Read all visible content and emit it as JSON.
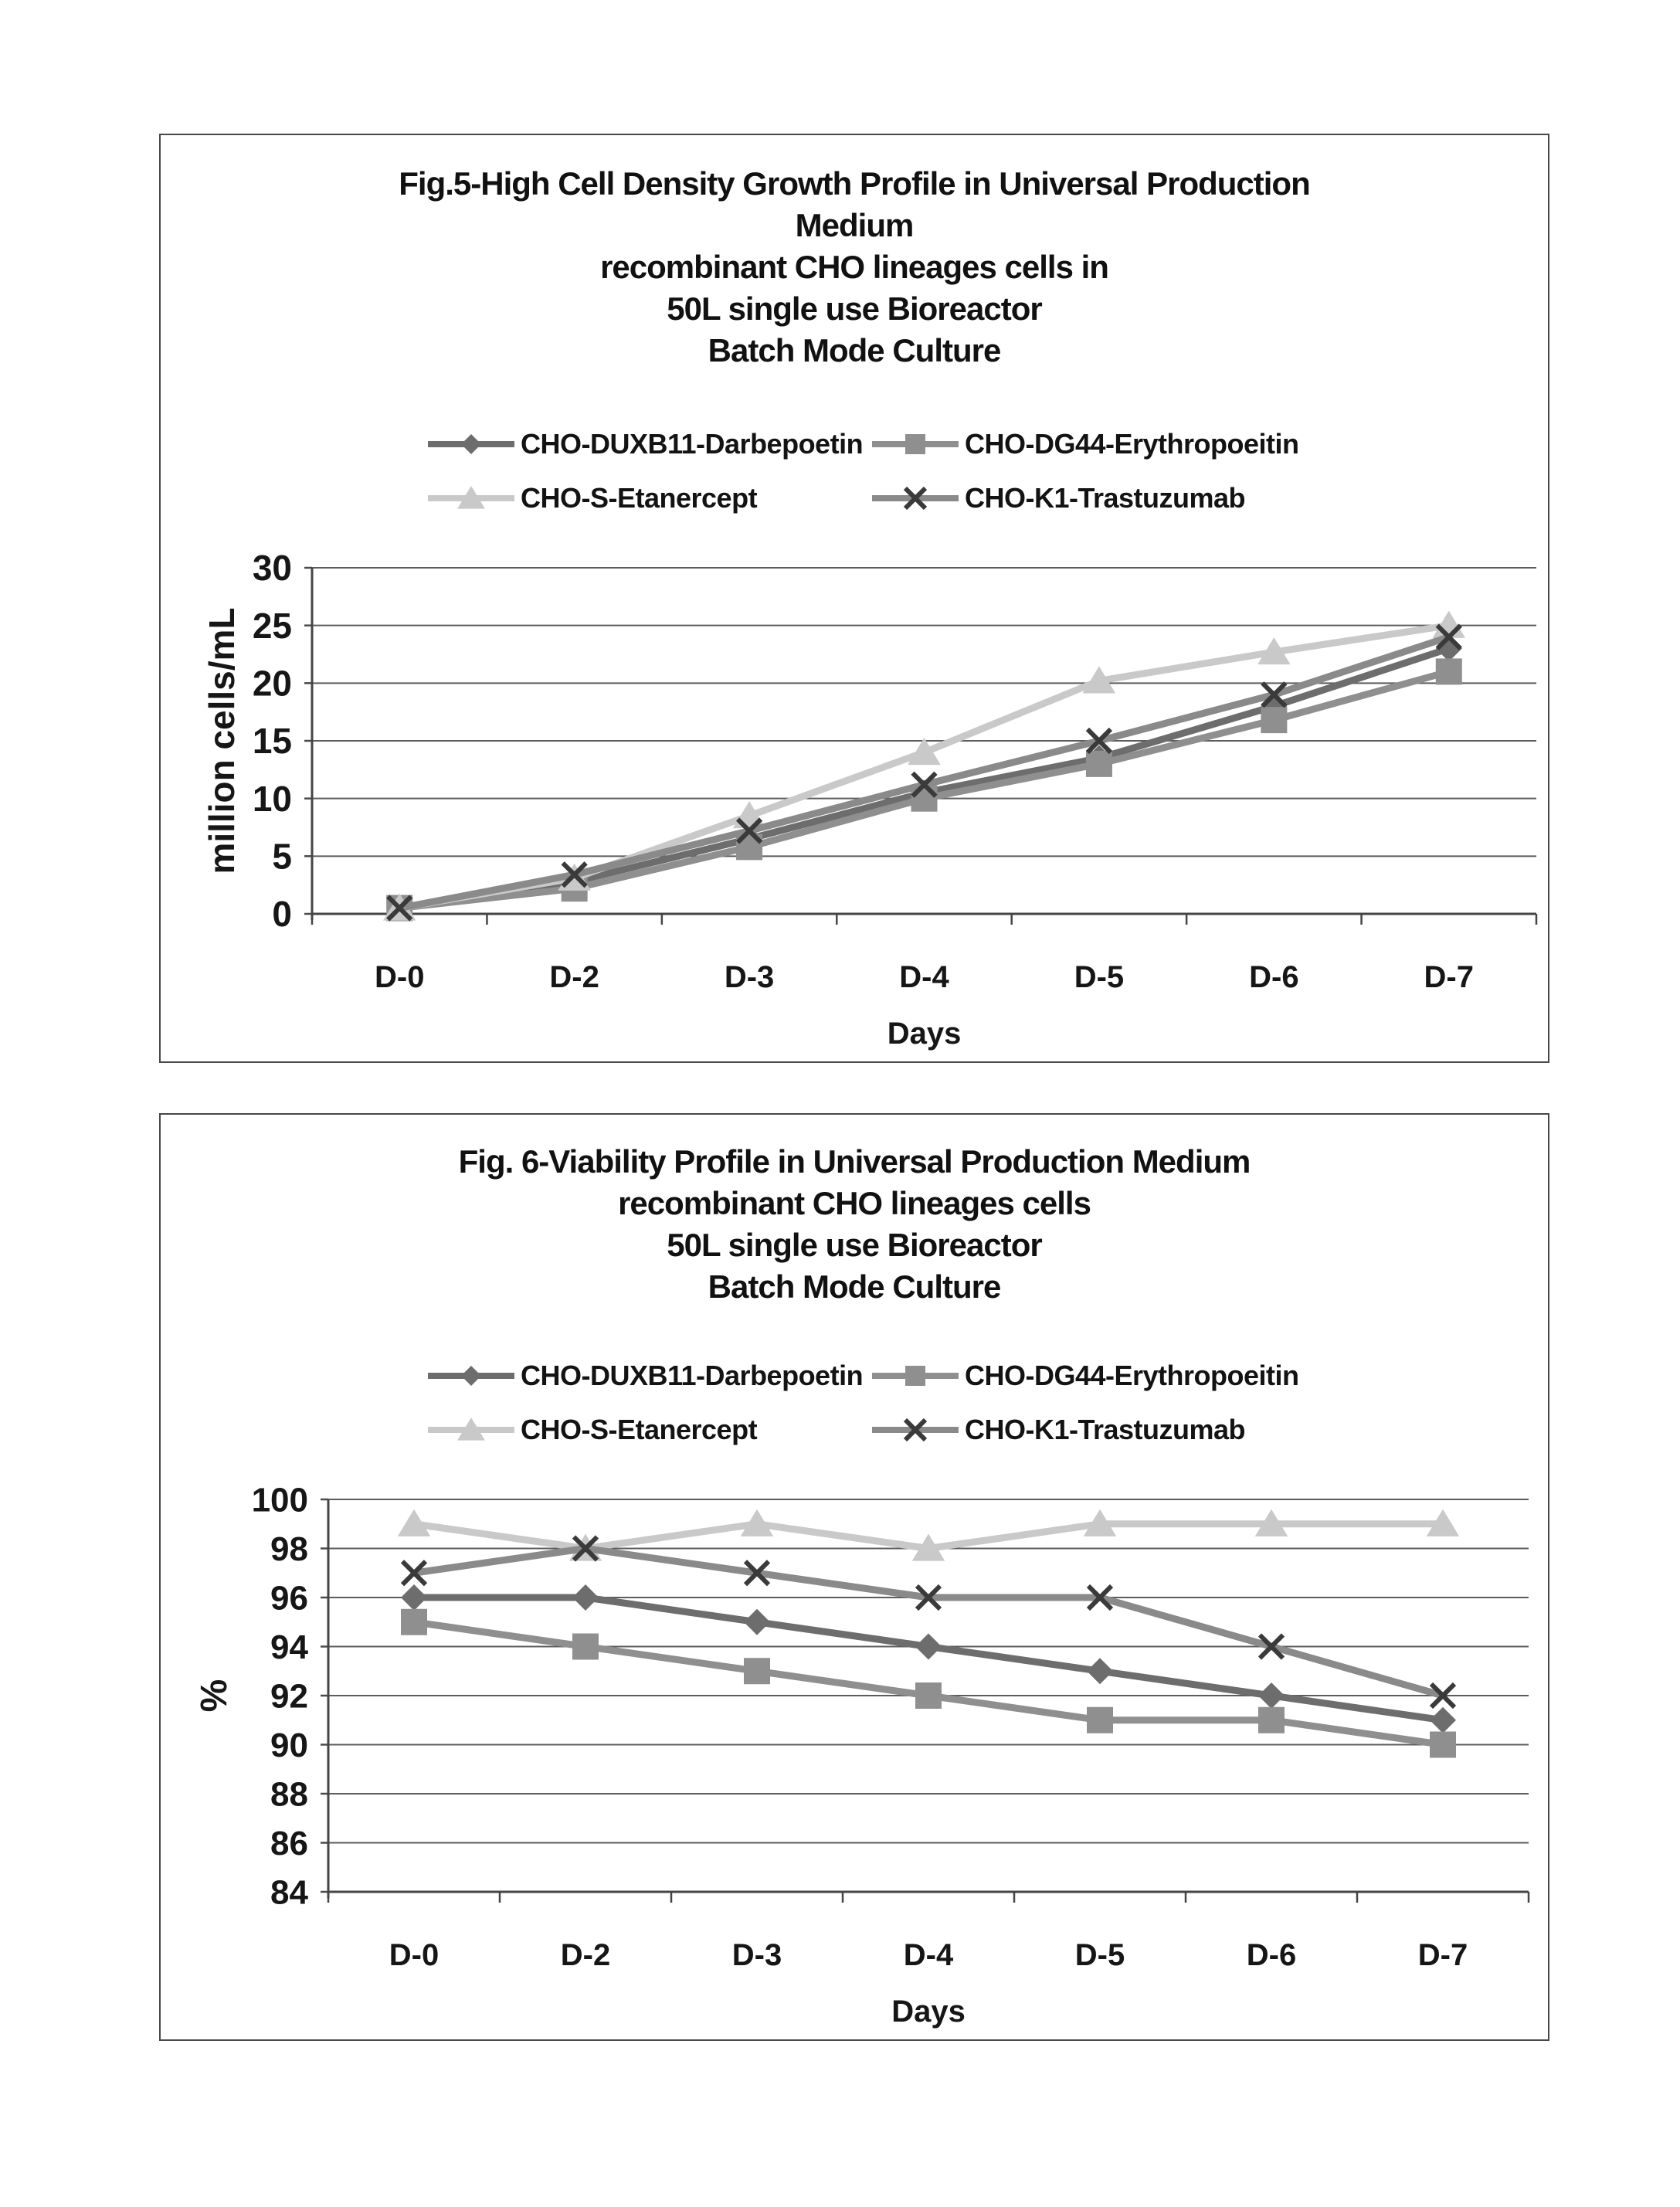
{
  "figures": [
    {
      "name": "figure-5-growth-profile",
      "title_lines": [
        "Fig.5-High Cell Density Growth Profile in Universal Production",
        "Medium",
        "recombinant CHO lineages cells in",
        "50L single use Bioreactor",
        "Batch Mode Culture"
      ],
      "legend": {
        "rows": [
          [
            {
              "label": "CHO-DUXB11-Darbepoetin",
              "marker": "diamond",
              "color": "#6d6d6d"
            },
            {
              "label": "CHO-DG44-Erythropoeitin",
              "marker": "square",
              "color": "#8f8f8f"
            }
          ],
          [
            {
              "label": "CHO-S-Etanercept",
              "marker": "triangle",
              "color": "#c9c9c9"
            },
            {
              "label": "CHO-K1-Trastuzumab",
              "marker": "x",
              "color": "#8a8a8a"
            }
          ]
        ]
      },
      "chart_data": {
        "type": "line",
        "categories": [
          "D-0",
          "D-2",
          "D-3",
          "D-4",
          "D-5",
          "D-6",
          "D-7"
        ],
        "xlabel": "Days",
        "ylabel": "million cells/mL",
        "ylim": [
          0,
          30
        ],
        "yticks": [
          0,
          5,
          10,
          15,
          20,
          25,
          30
        ],
        "grid": true,
        "legend_position": "top",
        "series": [
          {
            "name": "CHO-DUXB11-Darbepoetin",
            "marker": "diamond",
            "color": "#6d6d6d",
            "values": [
              0.5,
              2.8,
              6.5,
              10.5,
              13.5,
              18,
              23
            ]
          },
          {
            "name": "CHO-DG44-Erythropoeitin",
            "marker": "square",
            "color": "#8f8f8f",
            "values": [
              0.5,
              2.2,
              5.8,
              10,
              13,
              16.8,
              21
            ]
          },
          {
            "name": "CHO-S-Etanercept",
            "marker": "triangle",
            "color": "#c9c9c9",
            "values": [
              0.5,
              3.1,
              8.5,
              14,
              20.2,
              22.7,
              25
            ]
          },
          {
            "name": "CHO-K1-Trastuzumab",
            "marker": "x",
            "color": "#8a8a8a",
            "values": [
              0.5,
              3.4,
              7.2,
              11.2,
              15,
              19,
              24
            ]
          }
        ]
      }
    },
    {
      "name": "figure-6-viability-profile",
      "title_lines": [
        "Fig. 6-Viability Profile in Universal Production Medium",
        "recombinant CHO lineages cells",
        "50L single use Bioreactor",
        "Batch Mode Culture"
      ],
      "legend": {
        "rows": [
          [
            {
              "label": "CHO-DUXB11-Darbepoetin",
              "marker": "diamond",
              "color": "#6d6d6d"
            },
            {
              "label": "CHO-DG44-Erythropoeitin",
              "marker": "square",
              "color": "#8f8f8f"
            }
          ],
          [
            {
              "label": "CHO-S-Etanercept",
              "marker": "triangle",
              "color": "#c9c9c9"
            },
            {
              "label": "CHO-K1-Trastuzumab",
              "marker": "x",
              "color": "#8a8a8a"
            }
          ]
        ]
      },
      "chart_data": {
        "type": "line",
        "categories": [
          "D-0",
          "D-2",
          "D-3",
          "D-4",
          "D-5",
          "D-6",
          "D-7"
        ],
        "xlabel": "Days",
        "ylabel": "%",
        "ylim": [
          84,
          100
        ],
        "yticks": [
          84,
          86,
          88,
          90,
          92,
          94,
          96,
          98,
          100
        ],
        "grid": true,
        "legend_position": "top",
        "series": [
          {
            "name": "CHO-DUXB11-Darbepoetin",
            "marker": "diamond",
            "color": "#6d6d6d",
            "values": [
              96,
              96,
              95,
              94,
              93,
              92,
              91
            ]
          },
          {
            "name": "CHO-DG44-Erythropoeitin",
            "marker": "square",
            "color": "#8f8f8f",
            "values": [
              95,
              94,
              93,
              92,
              91,
              91,
              90
            ]
          },
          {
            "name": "CHO-S-Etanercept",
            "marker": "triangle",
            "color": "#c9c9c9",
            "values": [
              99,
              98,
              99,
              98,
              99,
              99,
              99
            ]
          },
          {
            "name": "CHO-K1-Trastuzumab",
            "marker": "x",
            "color": "#8a8a8a",
            "values": [
              97,
              98,
              97,
              96,
              96,
              94,
              92
            ]
          }
        ]
      }
    }
  ]
}
